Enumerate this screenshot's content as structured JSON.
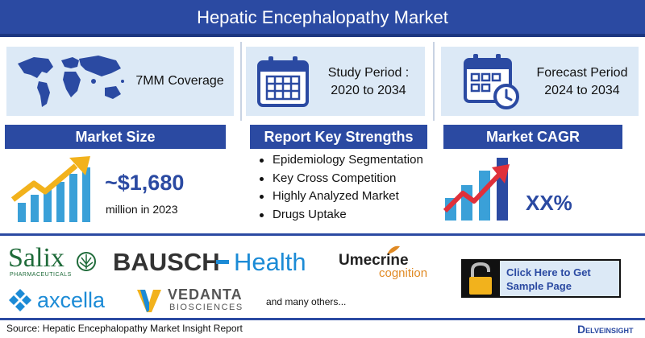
{
  "header": {
    "title": "Hepatic Encephalopathy Market"
  },
  "coverage": {
    "label": "7MM Coverage",
    "icon": "world-map-icon"
  },
  "study": {
    "line1": "Study Period :",
    "line2": "2020 to 2034",
    "icon": "calendar-icon"
  },
  "forecast": {
    "line1": "Forecast Period",
    "line2": "2024 to 2034",
    "icon": "calendar-clock-icon"
  },
  "market_size": {
    "title": "Market Size",
    "value": "~$1,680",
    "unit": "million in 2023",
    "icon": "growth-chart-icon"
  },
  "strengths": {
    "title": "Report Key Strengths",
    "items": [
      "Epidemiology Segmentation",
      "Key Cross Competition",
      "Highly Analyzed Market",
      "Drugs Uptake"
    ]
  },
  "cagr": {
    "title": "Market CAGR",
    "value": "XX%",
    "icon": "rising-bars-icon"
  },
  "logos": {
    "salix": "Salix",
    "salix_sub": "PHARMACEUTICALS",
    "bausch_a": "BAUSCH",
    "bausch_b": "Health",
    "umecrine_a": "Umecrine",
    "umecrine_b": "cognition",
    "axcella": "axcella",
    "vedanta_a": "VEDANTA",
    "vedanta_b": "BIOSCIENCES",
    "others": "and many others..."
  },
  "cta": {
    "label": "Click Here to Get Sample Page",
    "icon": "lock-icon"
  },
  "footer": {
    "source": "Source: Hepatic Encephalopathy Market Insight Report",
    "brand_a": "D",
    "brand_b": "ELVEINSIGHT"
  },
  "colors": {
    "primary": "#2b4aa2",
    "card": "#dce9f6",
    "accent_orange": "#f2b21c",
    "accent_red": "#e0303a"
  }
}
